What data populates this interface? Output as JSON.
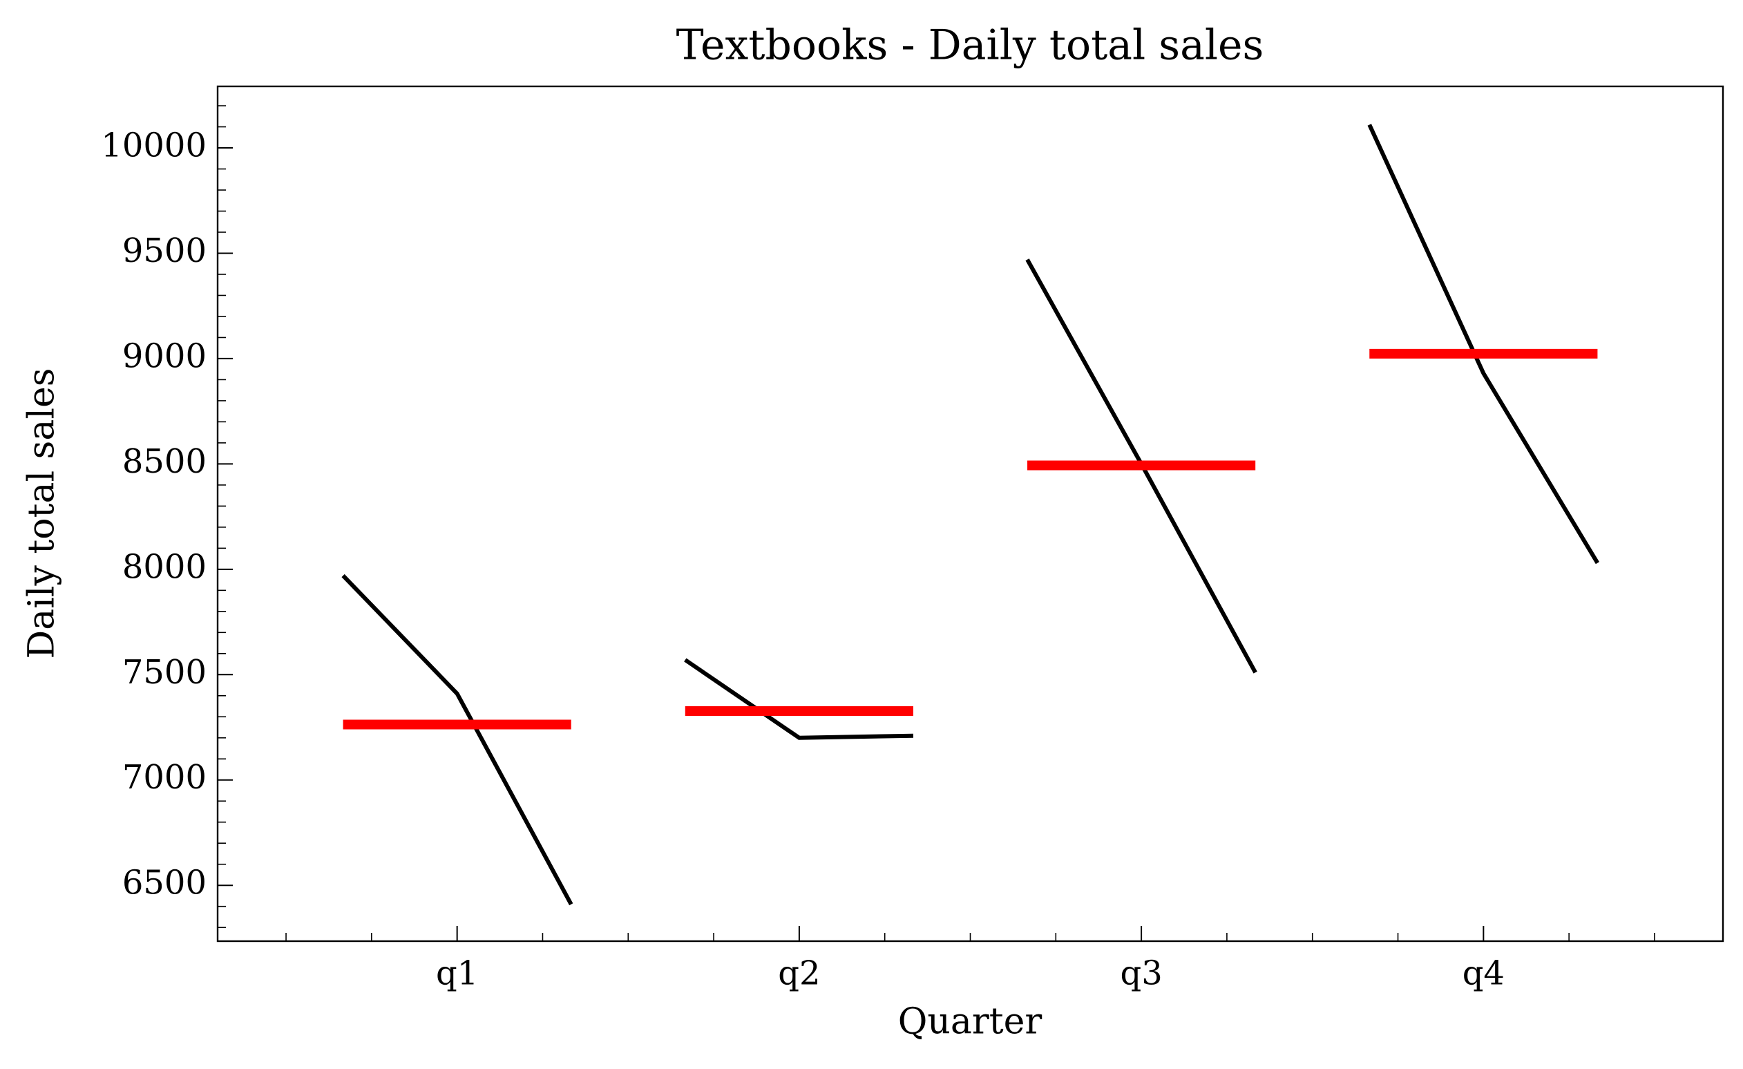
{
  "chart_data": {
    "type": "quarter",
    "title": "Textbooks - Daily total sales",
    "xlabel": "Quarter",
    "ylabel": "Daily total sales",
    "categories": [
      "q1",
      "q2",
      "q3",
      "q4"
    ],
    "values": [
      [
        7970,
        7410,
        6410
      ],
      [
        7570,
        7200,
        7210
      ],
      [
        9470,
        8500,
        7510
      ],
      [
        10110,
        8930,
        8030
      ]
    ],
    "means": [
      7263,
      7327,
      8493,
      9023
    ],
    "color": "#000000",
    "mean_color": "#ff0000",
    "xlim": [
      -0.7,
      3.7
    ],
    "ylim": [
      6235,
      10292
    ],
    "yticks": [
      6500,
      7000,
      7500,
      8000,
      8500,
      9000,
      9500,
      10000
    ]
  }
}
